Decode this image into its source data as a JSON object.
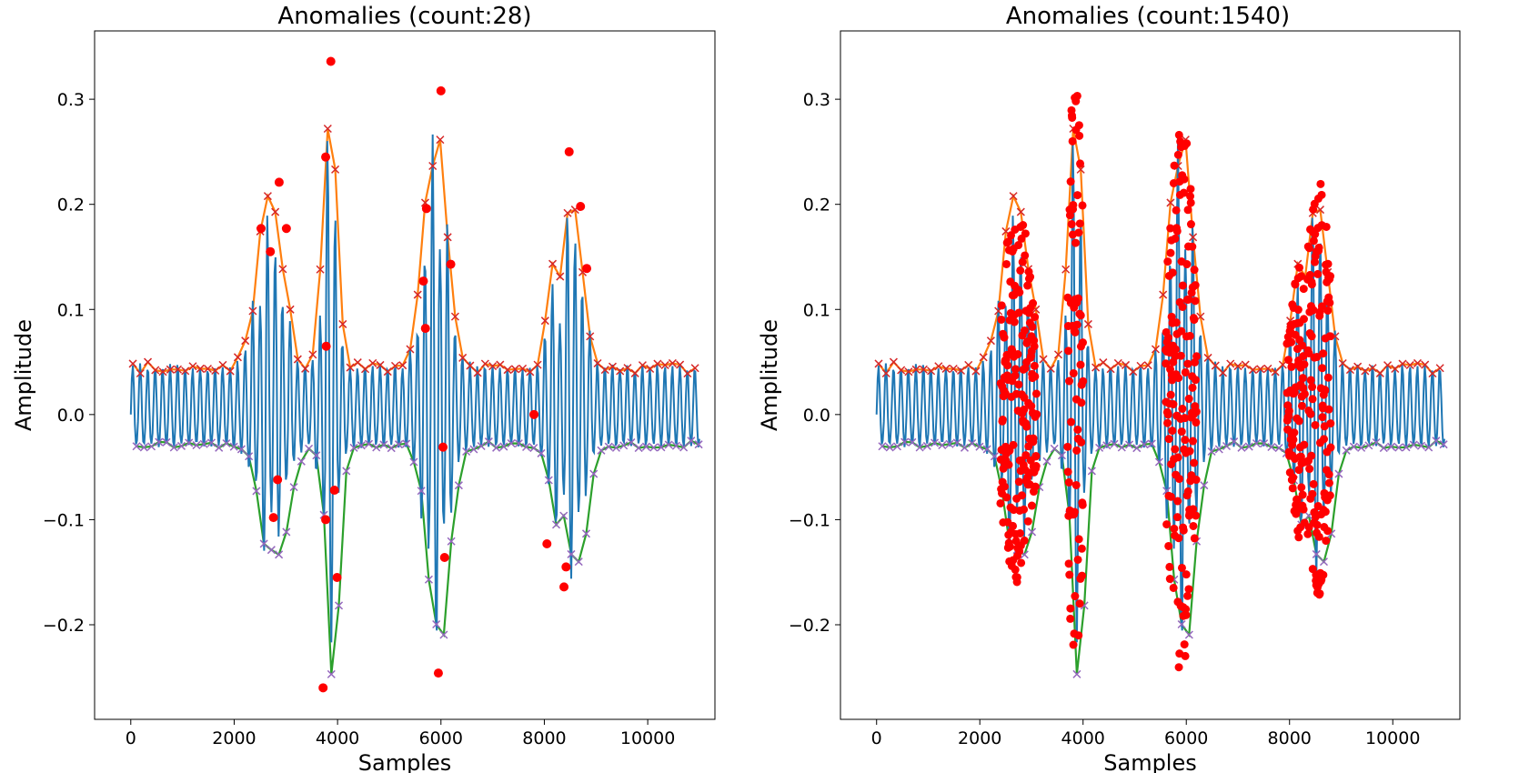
{
  "colors": {
    "signal": "#1f77b4",
    "upper_envelope": "#ff7f0e",
    "lower_envelope": "#2ca02c",
    "upper_peaks": "#d62728",
    "lower_peaks": "#9467bd",
    "anomaly": "#ff0000"
  },
  "chart_data": [
    {
      "type": "line",
      "title": "Anomalies (count:28)",
      "xlabel": "Samples",
      "ylabel": "Amplitude",
      "xlim": [
        -700,
        11300
      ],
      "ylim": [
        -0.29,
        0.365
      ],
      "xticks": [
        0,
        2000,
        4000,
        6000,
        8000,
        10000
      ],
      "xtick_labels": [
        "0",
        "2000",
        "4000",
        "6000",
        "8000",
        "10000"
      ],
      "yticks": [
        -0.2,
        -0.1,
        0.0,
        0.1,
        0.2,
        0.3
      ],
      "ytick_labels": [
        "−0.2",
        "−0.1",
        "0.0",
        "0.1",
        "0.2",
        "0.3"
      ],
      "grid": false,
      "anomaly_count": 28,
      "anomaly_mode": "peaks",
      "anomalies": [
        [
          2520,
          0.177
        ],
        [
          2700,
          0.155
        ],
        [
          2870,
          0.221
        ],
        [
          3010,
          0.177
        ],
        [
          3770,
          0.245
        ],
        [
          3870,
          0.336
        ],
        [
          6000,
          0.308
        ],
        [
          5660,
          0.127
        ],
        [
          5720,
          0.196
        ],
        [
          6190,
          0.143
        ],
        [
          8480,
          0.25
        ],
        [
          8700,
          0.198
        ],
        [
          8820,
          0.139
        ],
        [
          3780,
          0.065
        ],
        [
          5700,
          0.082
        ],
        [
          2760,
          -0.098
        ],
        [
          2840,
          -0.062
        ],
        [
          3720,
          -0.26
        ],
        [
          3770,
          -0.1
        ],
        [
          3940,
          -0.072
        ],
        [
          3990,
          -0.155
        ],
        [
          5950,
          -0.246
        ],
        [
          6040,
          -0.031
        ],
        [
          6070,
          -0.136
        ],
        [
          8050,
          -0.123
        ],
        [
          8380,
          -0.164
        ],
        [
          8420,
          -0.145
        ],
        [
          7800,
          0.0
        ]
      ]
    },
    {
      "type": "line",
      "title": "Anomalies (count:1540)",
      "xlabel": "Samples",
      "ylabel": "Amplitude",
      "xlim": [
        -700,
        11300
      ],
      "ylim": [
        -0.29,
        0.365
      ],
      "xticks": [
        0,
        2000,
        4000,
        6000,
        8000,
        10000
      ],
      "xtick_labels": [
        "0",
        "2000",
        "4000",
        "6000",
        "8000",
        "10000"
      ],
      "yticks": [
        -0.2,
        -0.1,
        0.0,
        0.1,
        0.2,
        0.3
      ],
      "ytick_labels": [
        "−0.2",
        "−0.1",
        "0.0",
        "0.1",
        "0.2",
        "0.3"
      ],
      "grid": false,
      "anomaly_count": 1540,
      "anomaly_mode": "dense",
      "anomaly_regions": [
        [
          2400,
          3100
        ],
        [
          3700,
          4000
        ],
        [
          5600,
          6200
        ],
        [
          7950,
          8300
        ],
        [
          8350,
          8800
        ]
      ]
    }
  ],
  "signal_model": {
    "n_samples": 11000,
    "baseline_upper": 0.05,
    "baseline_lower": -0.032,
    "bursts": [
      {
        "center": 2700,
        "width": 350,
        "upper": 0.22,
        "lower": -0.16
      },
      {
        "center": 3850,
        "width": 180,
        "upper": 0.336,
        "lower": -0.26
      },
      {
        "center": 5900,
        "width": 300,
        "upper": 0.308,
        "lower": -0.246
      },
      {
        "center": 8200,
        "width": 200,
        "upper": 0.155,
        "lower": -0.12
      },
      {
        "center": 8550,
        "width": 260,
        "upper": 0.25,
        "lower": -0.18
      }
    ]
  }
}
